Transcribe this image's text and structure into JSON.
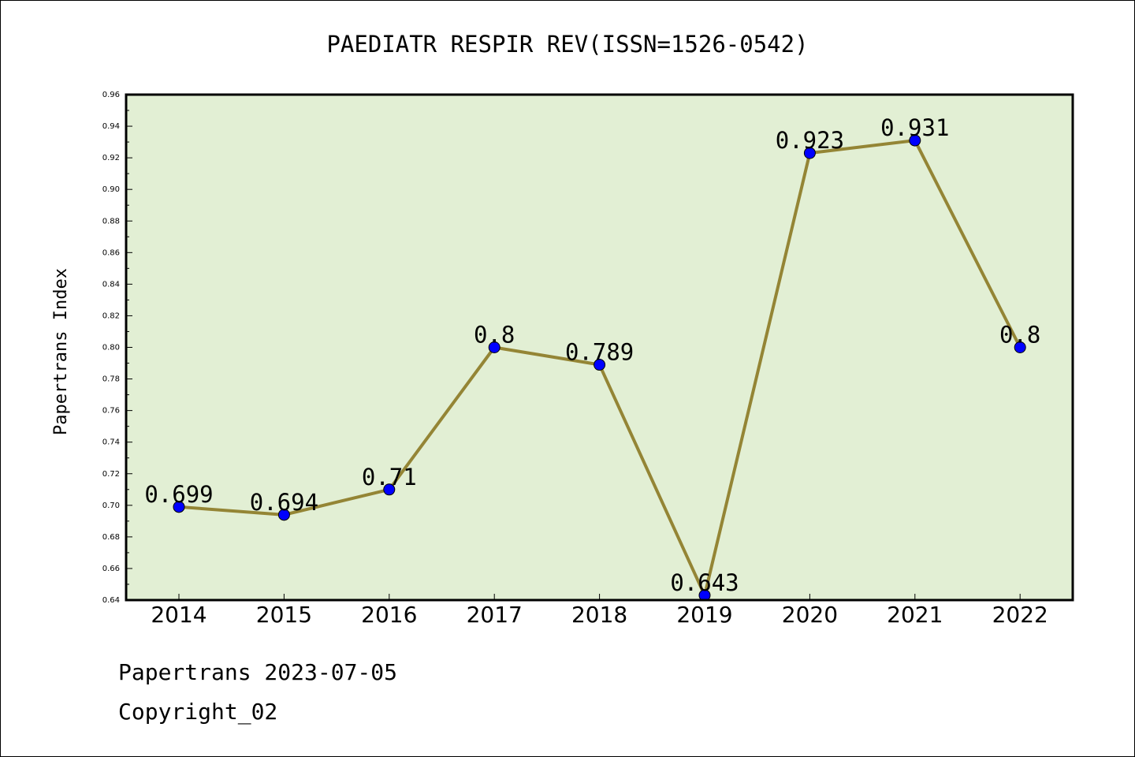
{
  "chart_data": {
    "type": "line",
    "title": "PAEDIATR RESPIR REV(ISSN=1526-0542)",
    "xlabel": "",
    "ylabel": "Papertrans Index",
    "categories": [
      "2014",
      "2015",
      "2016",
      "2017",
      "2018",
      "2019",
      "2020",
      "2021",
      "2022"
    ],
    "values": [
      0.699,
      0.694,
      0.71,
      0.8,
      0.789,
      0.643,
      0.923,
      0.931,
      0.8
    ],
    "data_labels": [
      "0.699",
      "0.694",
      "0.71",
      "0.8",
      "0.789",
      "0.643",
      "0.923",
      "0.931",
      "0.8"
    ],
    "ylim": [
      0.64,
      0.96
    ],
    "yticks": [
      "0.64",
      "0.66",
      "0.68",
      "0.70",
      "0.72",
      "0.74",
      "0.76",
      "0.78",
      "0.80",
      "0.82",
      "0.84",
      "0.86",
      "0.88",
      "0.90",
      "0.92",
      "0.94",
      "0.96"
    ],
    "grid": false,
    "legend": "none",
    "colors": {
      "plot_background": "#e2efd4",
      "line": "#948535",
      "marker": "#0000ff"
    }
  },
  "footer": {
    "date_line": "Papertrans 2023-07-05",
    "copyright": "Copyright_02"
  }
}
